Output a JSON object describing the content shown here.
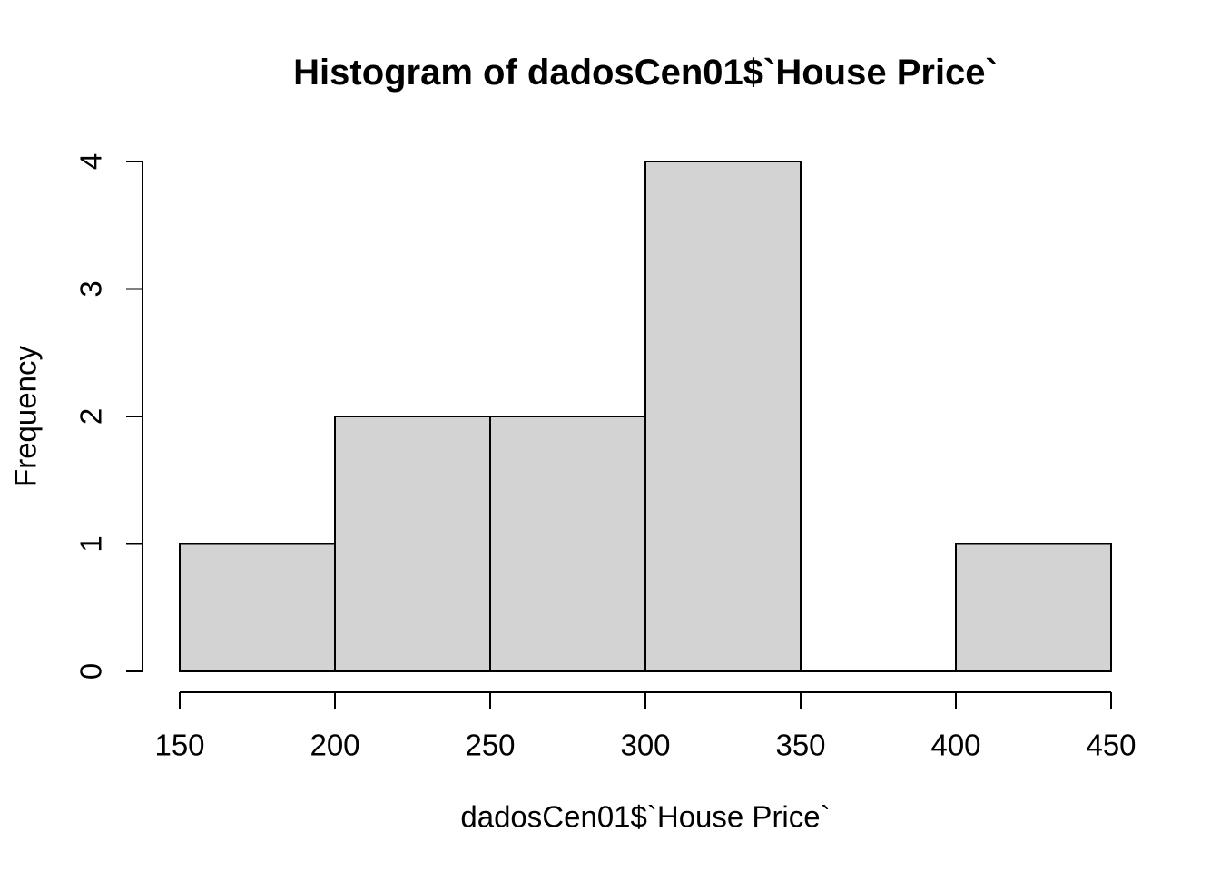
{
  "chart_data": {
    "type": "bar",
    "subtype": "histogram",
    "title": "Histogram of dadosCen01$`House Price`",
    "xlabel": "dadosCen01$`House Price`",
    "ylabel": "Frequency",
    "bin_breaks": [
      150,
      200,
      250,
      300,
      350,
      400,
      450
    ],
    "counts": [
      1,
      2,
      2,
      4,
      0,
      1
    ],
    "categories": [
      "150-200",
      "200-250",
      "250-300",
      "300-350",
      "350-400",
      "400-450"
    ],
    "values": [
      1,
      2,
      2,
      4,
      0,
      1
    ],
    "x_ticks": [
      150,
      200,
      250,
      300,
      350,
      400,
      450
    ],
    "y_ticks": [
      0,
      1,
      2,
      3,
      4
    ],
    "xlim": [
      150,
      450
    ],
    "ylim": [
      0,
      4
    ],
    "grid": false,
    "legend_position": "none",
    "bar_fill": "#d3d3d3",
    "bar_stroke": "#000000",
    "axis_color": "#000000",
    "text_color": "#000000",
    "background": "#ffffff"
  }
}
